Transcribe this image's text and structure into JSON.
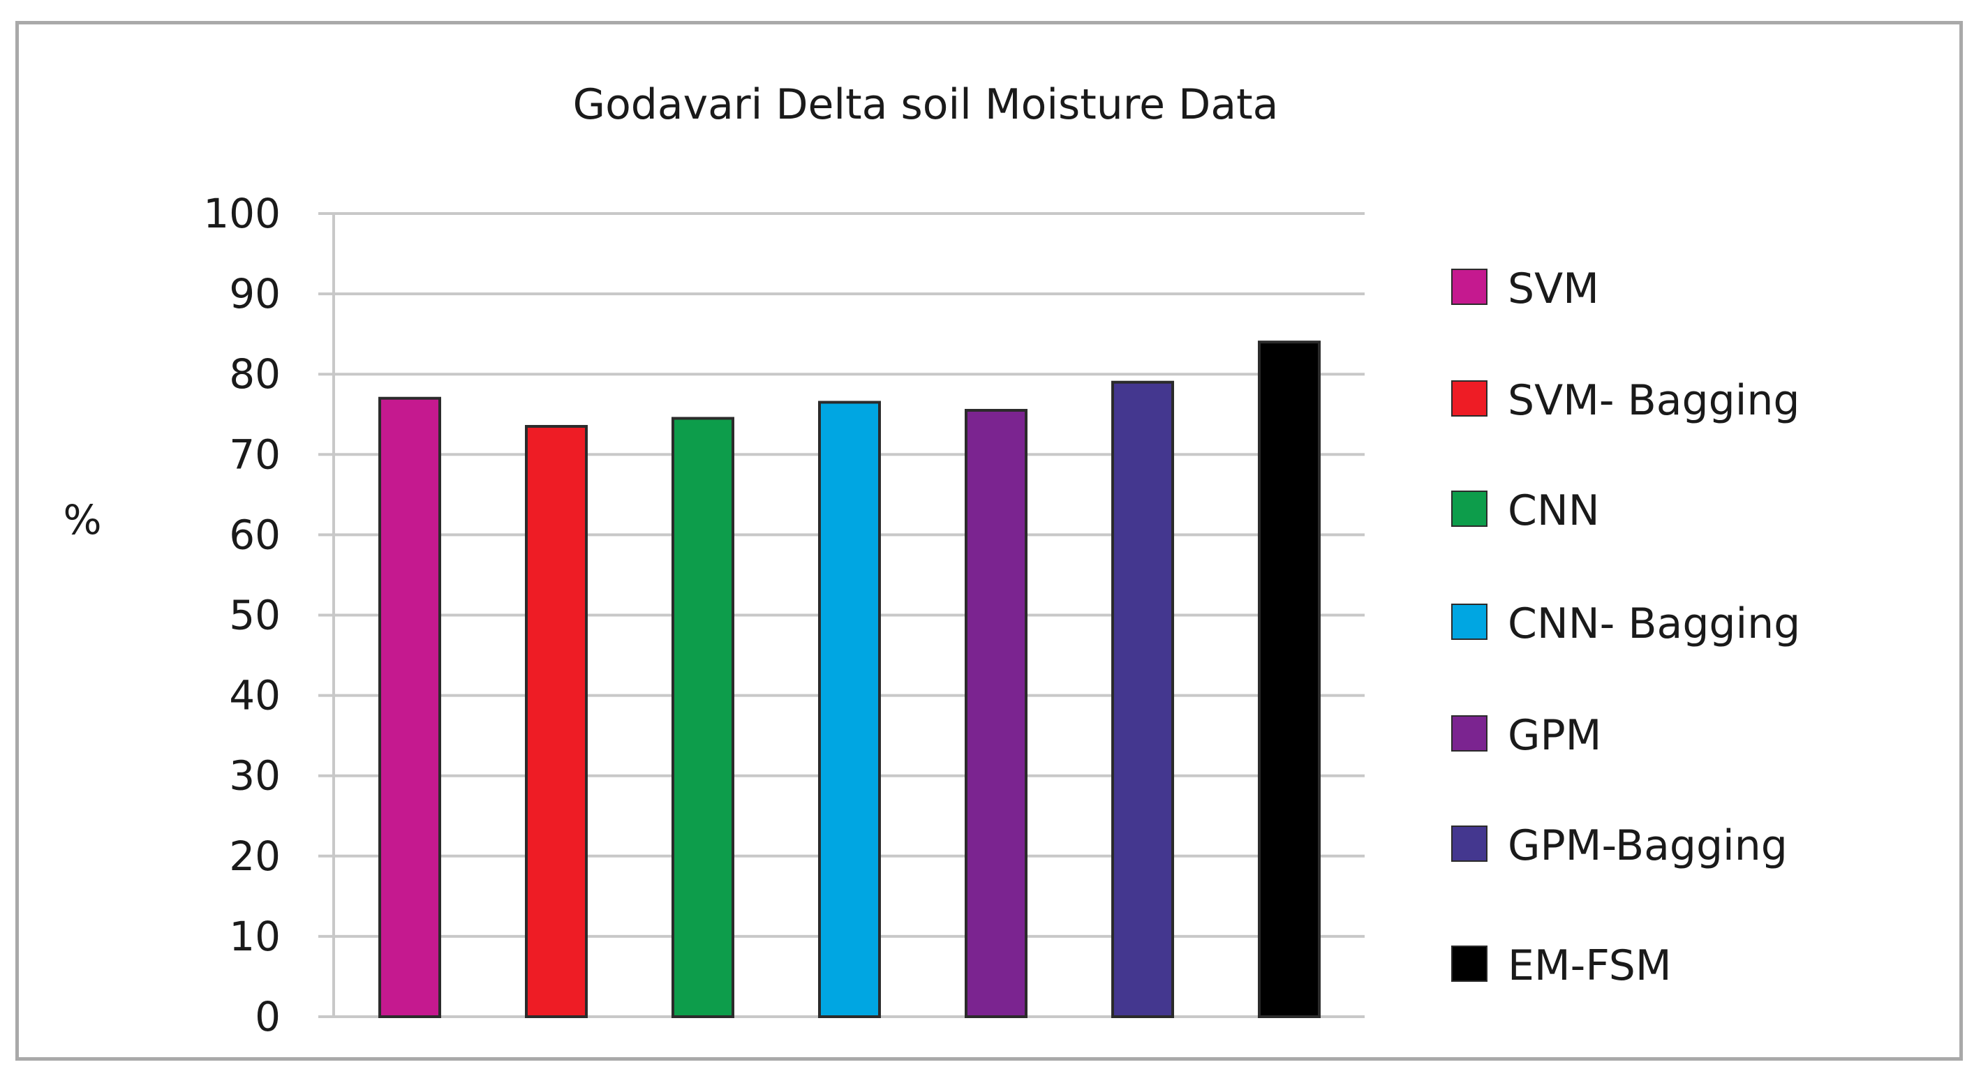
{
  "chart_data": {
    "type": "bar",
    "title": "Godavari Delta soil Moisture Data",
    "xlabel": "",
    "ylabel": "%",
    "ylim": [
      0,
      100
    ],
    "yticks": [
      0,
      10,
      20,
      30,
      40,
      50,
      60,
      70,
      80,
      90,
      100
    ],
    "grid": true,
    "legend_position": "right",
    "categories": [
      "SVM",
      "SVM- Bagging",
      "CNN",
      "CNN- Bagging",
      "GPM",
      "GPM-Bagging",
      "EM-FSM"
    ],
    "values": [
      77,
      73.5,
      74.5,
      76.5,
      75.5,
      79,
      84
    ],
    "colors": [
      "#c5198f",
      "#ee1c25",
      "#0d9d4b",
      "#00a6e2",
      "#7b2490",
      "#44378f",
      "#000000"
    ]
  }
}
